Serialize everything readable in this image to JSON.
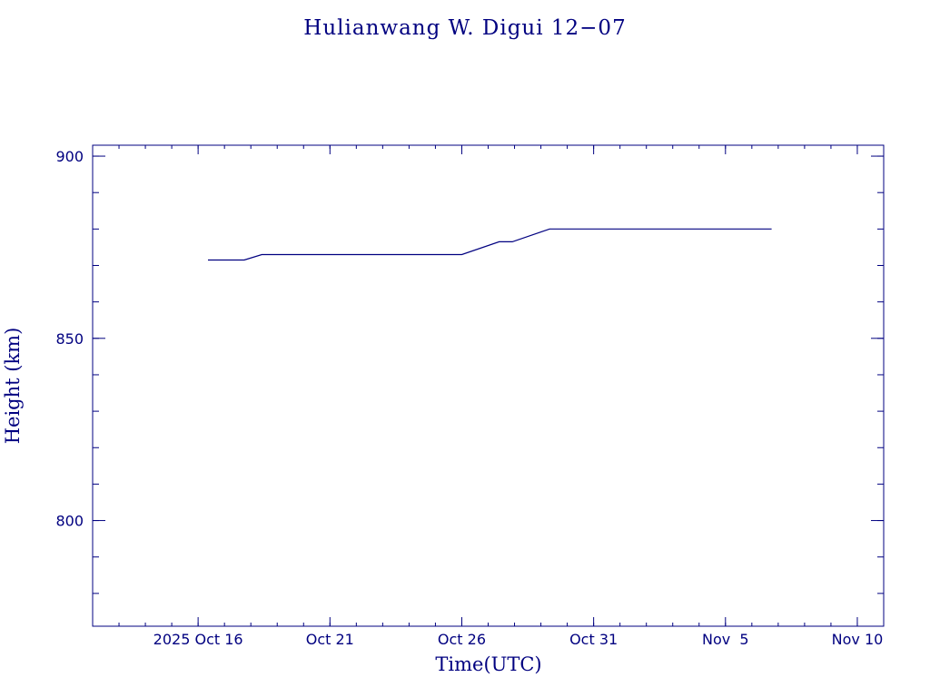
{
  "chart_data": {
    "type": "line",
    "title": "Hulianwang W. Digui 12−07",
    "xlabel": "Time(UTC)",
    "ylabel": "Height (km)",
    "xlim": [
      "2025-10-12",
      "2025-11-11"
    ],
    "ylim": [
      771,
      903
    ],
    "x_ticks": [
      {
        "date": "2025-10-16",
        "label": "2025 Oct 16"
      },
      {
        "date": "2025-10-21",
        "label": "Oct 21"
      },
      {
        "date": "2025-10-26",
        "label": "Oct 26"
      },
      {
        "date": "2025-10-31",
        "label": "Oct 31"
      },
      {
        "date": "2025-11-05",
        "label": "Nov  5"
      },
      {
        "date": "2025-11-10",
        "label": "Nov 10"
      }
    ],
    "y_ticks": [
      800,
      850,
      900
    ],
    "grid": false,
    "series": [
      {
        "color": "#000080",
        "points": [
          {
            "x": "2025-10-16T09:00",
            "y": 871.5
          },
          {
            "x": "2025-10-17T18:00",
            "y": 871.5
          },
          {
            "x": "2025-10-18T10:00",
            "y": 873
          },
          {
            "x": "2025-10-26T00:00",
            "y": 873
          },
          {
            "x": "2025-10-27T10:00",
            "y": 876.5
          },
          {
            "x": "2025-10-27T22:00",
            "y": 876.5
          },
          {
            "x": "2025-10-29T08:00",
            "y": 880
          },
          {
            "x": "2025-11-06T18:00",
            "y": 880
          }
        ]
      }
    ]
  },
  "colors": {
    "axis": "#000080",
    "line": "#000080",
    "text": "#000080",
    "background": "#ffffff"
  }
}
